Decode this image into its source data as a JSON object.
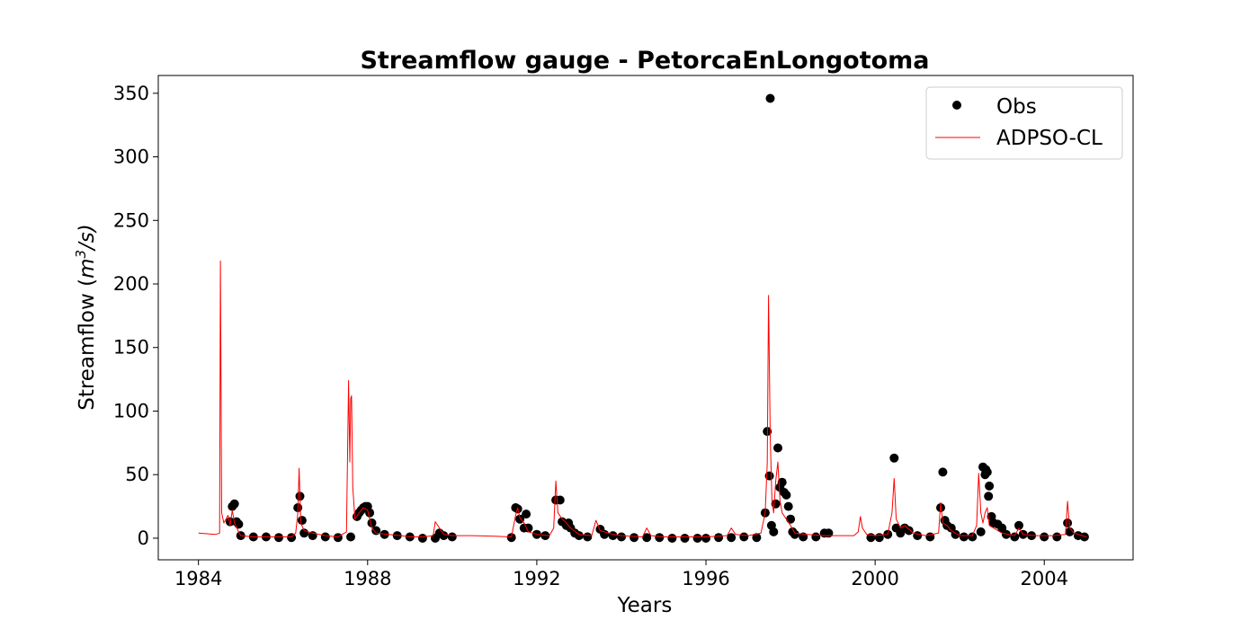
{
  "chart_data": {
    "type": "line",
    "title": "Streamflow gauge - PetorcaEnLongotoma",
    "xlabel": "Years",
    "ylabel_main": "Streamflow (",
    "ylabel_unit_base": "m",
    "ylabel_unit_sup": "3",
    "ylabel_unit_tail": "/s)",
    "xlim": [
      1983.05,
      2006.1
    ],
    "ylim": [
      -17,
      364
    ],
    "x_ticks": [
      1984,
      1988,
      1992,
      1996,
      2000,
      2004
    ],
    "x_tick_labels": [
      "1984",
      "1988",
      "1992",
      "1996",
      "2000",
      "2004"
    ],
    "y_ticks": [
      0,
      50,
      100,
      150,
      200,
      250,
      300,
      350
    ],
    "y_tick_labels": [
      "0",
      "50",
      "100",
      "150",
      "200",
      "250",
      "300",
      "350"
    ],
    "grid": false,
    "legend_position": "top-right",
    "series": [
      {
        "name": "Obs",
        "style": "markers",
        "color": "#000000",
        "points": [
          [
            1984.75,
            13
          ],
          [
            1984.8,
            25
          ],
          [
            1984.85,
            27
          ],
          [
            1984.9,
            13
          ],
          [
            1984.95,
            11
          ],
          [
            1985.0,
            2
          ],
          [
            1985.3,
            1
          ],
          [
            1985.6,
            1
          ],
          [
            1985.9,
            0.5
          ],
          [
            1986.2,
            0.5
          ],
          [
            1986.35,
            24
          ],
          [
            1986.4,
            33
          ],
          [
            1986.45,
            14
          ],
          [
            1986.5,
            4
          ],
          [
            1986.7,
            2
          ],
          [
            1987.0,
            1
          ],
          [
            1987.3,
            0.5
          ],
          [
            1987.6,
            1
          ],
          [
            1987.75,
            17
          ],
          [
            1987.8,
            20
          ],
          [
            1987.85,
            22
          ],
          [
            1987.9,
            24
          ],
          [
            1987.95,
            25
          ],
          [
            1988.0,
            25
          ],
          [
            1988.05,
            20
          ],
          [
            1988.1,
            12
          ],
          [
            1988.2,
            6
          ],
          [
            1988.4,
            3
          ],
          [
            1988.7,
            2
          ],
          [
            1989.0,
            1
          ],
          [
            1989.3,
            0
          ],
          [
            1989.6,
            0
          ],
          [
            1989.7,
            4
          ],
          [
            1989.8,
            2
          ],
          [
            1990.0,
            1
          ],
          [
            1991.4,
            0.5
          ],
          [
            1991.5,
            24
          ],
          [
            1991.55,
            23
          ],
          [
            1991.6,
            15
          ],
          [
            1991.7,
            8
          ],
          [
            1991.75,
            19
          ],
          [
            1991.8,
            8
          ],
          [
            1992.0,
            3
          ],
          [
            1992.2,
            2
          ],
          [
            1992.45,
            30
          ],
          [
            1992.55,
            30
          ],
          [
            1992.6,
            13
          ],
          [
            1992.7,
            10
          ],
          [
            1992.75,
            12
          ],
          [
            1992.8,
            8
          ],
          [
            1992.9,
            4
          ],
          [
            1993.0,
            2
          ],
          [
            1993.2,
            1
          ],
          [
            1993.5,
            7
          ],
          [
            1993.6,
            3
          ],
          [
            1993.8,
            2
          ],
          [
            1994.0,
            1
          ],
          [
            1994.3,
            0.5
          ],
          [
            1994.6,
            0.5
          ],
          [
            1994.9,
            0.5
          ],
          [
            1995.2,
            0
          ],
          [
            1995.5,
            0
          ],
          [
            1995.8,
            0
          ],
          [
            1996.0,
            0
          ],
          [
            1996.3,
            0.5
          ],
          [
            1996.6,
            0.5
          ],
          [
            1996.9,
            1
          ],
          [
            1997.2,
            0.5
          ],
          [
            1997.4,
            20
          ],
          [
            1997.45,
            84
          ],
          [
            1997.5,
            49
          ],
          [
            1997.52,
            346
          ],
          [
            1997.55,
            10
          ],
          [
            1997.6,
            5
          ],
          [
            1997.65,
            27
          ],
          [
            1997.7,
            71
          ],
          [
            1997.75,
            40
          ],
          [
            1997.8,
            44
          ],
          [
            1997.85,
            36
          ],
          [
            1997.9,
            34
          ],
          [
            1997.95,
            25
          ],
          [
            1998.0,
            15
          ],
          [
            1998.05,
            5
          ],
          [
            1998.1,
            3
          ],
          [
            1998.3,
            1
          ],
          [
            1998.6,
            1
          ],
          [
            1998.8,
            4
          ],
          [
            1998.9,
            4
          ],
          [
            1999.9,
            0.5
          ],
          [
            2000.1,
            0.5
          ],
          [
            2000.3,
            3
          ],
          [
            2000.45,
            63
          ],
          [
            2000.5,
            8
          ],
          [
            2000.6,
            4
          ],
          [
            2000.7,
            8
          ],
          [
            2000.8,
            6
          ],
          [
            2001.0,
            2
          ],
          [
            2001.3,
            1
          ],
          [
            2001.55,
            24
          ],
          [
            2001.6,
            52
          ],
          [
            2001.65,
            14
          ],
          [
            2001.7,
            10
          ],
          [
            2001.8,
            8
          ],
          [
            2001.9,
            3
          ],
          [
            2002.1,
            1
          ],
          [
            2002.3,
            1
          ],
          [
            2002.5,
            5
          ],
          [
            2002.55,
            56
          ],
          [
            2002.6,
            50
          ],
          [
            2002.62,
            54
          ],
          [
            2002.65,
            52
          ],
          [
            2002.68,
            33
          ],
          [
            2002.7,
            41
          ],
          [
            2002.75,
            17
          ],
          [
            2002.8,
            12
          ],
          [
            2002.9,
            11
          ],
          [
            2003.0,
            8
          ],
          [
            2003.1,
            3
          ],
          [
            2003.3,
            1
          ],
          [
            2003.4,
            10
          ],
          [
            2003.5,
            3
          ],
          [
            2003.7,
            2
          ],
          [
            2004.0,
            1
          ],
          [
            2004.3,
            1
          ],
          [
            2004.55,
            12
          ],
          [
            2004.6,
            5
          ],
          [
            2004.8,
            2
          ],
          [
            2004.95,
            1
          ]
        ]
      },
      {
        "name": "ADPSO-CL",
        "style": "line",
        "color": "#ff0000",
        "points": [
          [
            1984.0,
            4
          ],
          [
            1984.2,
            3.5
          ],
          [
            1984.4,
            3
          ],
          [
            1984.5,
            4
          ],
          [
            1984.52,
            218
          ],
          [
            1984.55,
            20
          ],
          [
            1984.6,
            12
          ],
          [
            1984.7,
            18
          ],
          [
            1984.75,
            10
          ],
          [
            1984.8,
            22
          ],
          [
            1984.85,
            12
          ],
          [
            1984.95,
            5
          ],
          [
            1985.0,
            2
          ],
          [
            1985.3,
            1
          ],
          [
            1985.6,
            1
          ],
          [
            1985.9,
            1
          ],
          [
            1986.2,
            1
          ],
          [
            1986.3,
            4
          ],
          [
            1986.35,
            20
          ],
          [
            1986.38,
            55
          ],
          [
            1986.42,
            12
          ],
          [
            1986.5,
            6
          ],
          [
            1986.7,
            4
          ],
          [
            1987.0,
            2
          ],
          [
            1987.3,
            1
          ],
          [
            1987.5,
            5
          ],
          [
            1987.55,
            124
          ],
          [
            1987.58,
            60
          ],
          [
            1987.6,
            110
          ],
          [
            1987.62,
            112
          ],
          [
            1987.65,
            40
          ],
          [
            1987.7,
            15
          ],
          [
            1987.8,
            20
          ],
          [
            1987.9,
            24
          ],
          [
            1988.0,
            22
          ],
          [
            1988.1,
            8
          ],
          [
            1988.2,
            4
          ],
          [
            1988.5,
            3
          ],
          [
            1988.8,
            2
          ],
          [
            1989.0,
            1
          ],
          [
            1989.3,
            1
          ],
          [
            1989.55,
            2
          ],
          [
            1989.6,
            13
          ],
          [
            1989.7,
            8
          ],
          [
            1989.8,
            3
          ],
          [
            1990.0,
            2
          ],
          [
            1990.5,
            2
          ],
          [
            1991.0,
            1.5
          ],
          [
            1991.4,
            1
          ],
          [
            1991.5,
            18
          ],
          [
            1991.55,
            24
          ],
          [
            1991.6,
            16
          ],
          [
            1991.7,
            12
          ],
          [
            1991.8,
            5
          ],
          [
            1992.0,
            3
          ],
          [
            1992.3,
            2
          ],
          [
            1992.4,
            8
          ],
          [
            1992.45,
            45
          ],
          [
            1992.5,
            20
          ],
          [
            1992.6,
            15
          ],
          [
            1992.7,
            12
          ],
          [
            1992.8,
            8
          ],
          [
            1993.0,
            3
          ],
          [
            1993.3,
            2
          ],
          [
            1993.4,
            14
          ],
          [
            1993.5,
            6
          ],
          [
            1993.8,
            3
          ],
          [
            1994.0,
            2
          ],
          [
            1994.5,
            1
          ],
          [
            1994.6,
            8
          ],
          [
            1994.7,
            2
          ],
          [
            1995.0,
            1
          ],
          [
            1995.5,
            1
          ],
          [
            1996.0,
            1
          ],
          [
            1996.5,
            2
          ],
          [
            1996.6,
            8
          ],
          [
            1996.7,
            3
          ],
          [
            1997.0,
            2
          ],
          [
            1997.3,
            4
          ],
          [
            1997.4,
            20
          ],
          [
            1997.45,
            60
          ],
          [
            1997.48,
            191
          ],
          [
            1997.52,
            80
          ],
          [
            1997.56,
            30
          ],
          [
            1997.6,
            20
          ],
          [
            1997.65,
            45
          ],
          [
            1997.7,
            60
          ],
          [
            1997.75,
            30
          ],
          [
            1997.8,
            20
          ],
          [
            1997.9,
            15
          ],
          [
            1998.0,
            10
          ],
          [
            1998.1,
            4
          ],
          [
            1998.4,
            3
          ],
          [
            1998.8,
            2
          ],
          [
            1999.0,
            2
          ],
          [
            1999.5,
            2
          ],
          [
            1999.6,
            5
          ],
          [
            1999.65,
            17
          ],
          [
            1999.7,
            8
          ],
          [
            1999.8,
            3
          ],
          [
            2000.0,
            2
          ],
          [
            2000.3,
            3
          ],
          [
            2000.4,
            20
          ],
          [
            2000.45,
            47
          ],
          [
            2000.5,
            15
          ],
          [
            2000.6,
            8
          ],
          [
            2000.7,
            10
          ],
          [
            2000.9,
            4
          ],
          [
            2001.2,
            2
          ],
          [
            2001.5,
            4
          ],
          [
            2001.55,
            28
          ],
          [
            2001.6,
            12
          ],
          [
            2001.7,
            10
          ],
          [
            2001.8,
            6
          ],
          [
            2002.0,
            2
          ],
          [
            2002.3,
            2
          ],
          [
            2002.4,
            10
          ],
          [
            2002.45,
            51
          ],
          [
            2002.5,
            20
          ],
          [
            2002.55,
            12
          ],
          [
            2002.6,
            20
          ],
          [
            2002.65,
            24
          ],
          [
            2002.7,
            10
          ],
          [
            2002.8,
            8
          ],
          [
            2003.0,
            4
          ],
          [
            2003.3,
            2
          ],
          [
            2003.4,
            8
          ],
          [
            2003.5,
            3
          ],
          [
            2003.8,
            2
          ],
          [
            2004.2,
            2
          ],
          [
            2004.5,
            3
          ],
          [
            2004.55,
            29
          ],
          [
            2004.6,
            8
          ],
          [
            2004.7,
            4
          ],
          [
            2004.9,
            2
          ],
          [
            2005.0,
            1
          ]
        ]
      }
    ]
  }
}
